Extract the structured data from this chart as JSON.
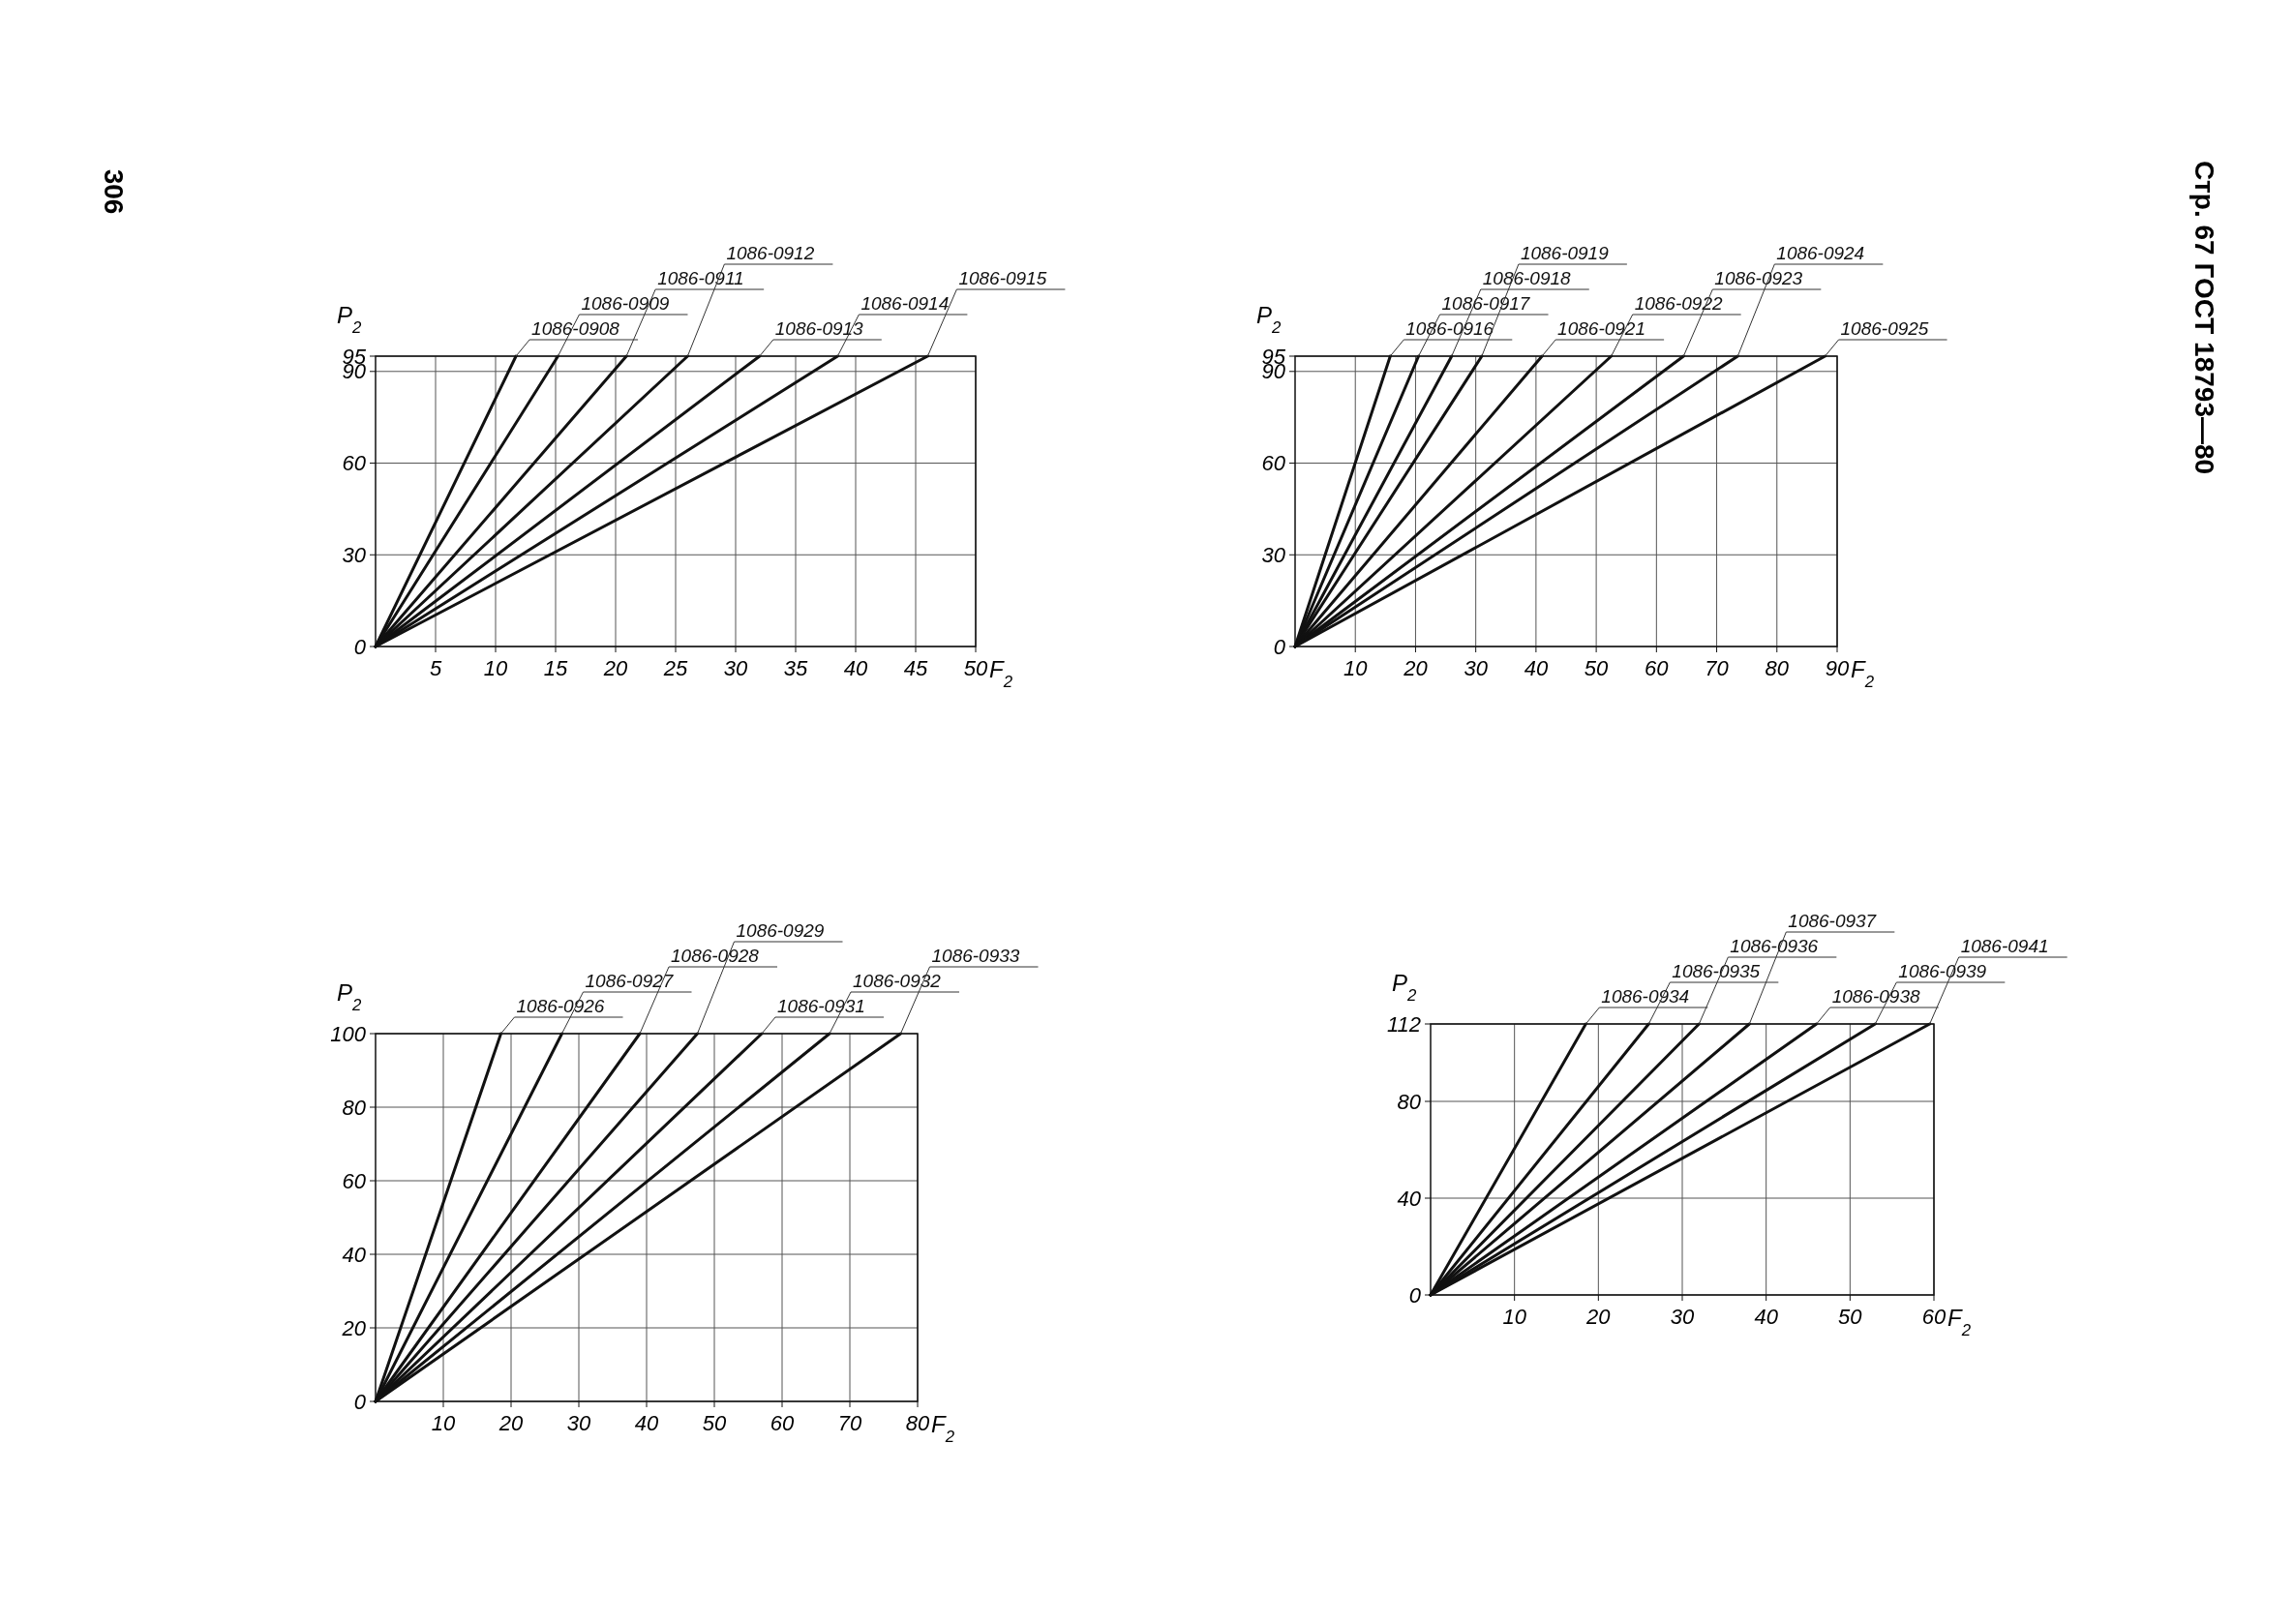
{
  "chart_data": [
    {
      "type": "line",
      "xlabel": "F$_{2}$",
      "ylabel": "P$_{2}$",
      "xlim": [
        0,
        50
      ],
      "ylim": [
        0,
        95
      ],
      "xticks": [
        5,
        10,
        15,
        20,
        25,
        30,
        35,
        40,
        45,
        50
      ],
      "yticks": [
        0,
        30,
        60,
        90,
        95
      ],
      "grid": true,
      "annotations": [
        "306"
      ],
      "series": [
        {
          "name": "1086-0908",
          "color": "#111111",
          "x": [
            0,
            11.7
          ],
          "values": [
            0,
            95
          ]
        },
        {
          "name": "1086-0909",
          "color": "#111111",
          "x": [
            0,
            15.2
          ],
          "values": [
            0,
            95
          ]
        },
        {
          "name": "1086-0911",
          "color": "#111111",
          "x": [
            0,
            20.9
          ],
          "values": [
            0,
            95
          ]
        },
        {
          "name": "1086-0912",
          "color": "#111111",
          "x": [
            0,
            26
          ],
          "values": [
            0,
            95
          ]
        },
        {
          "name": "1086-0913",
          "color": "#111111",
          "x": [
            0,
            32
          ],
          "values": [
            0,
            95
          ]
        },
        {
          "name": "1086-0914",
          "color": "#111111",
          "x": [
            0,
            38.5
          ],
          "values": [
            0,
            95
          ]
        },
        {
          "name": "1086-0915",
          "color": "#111111",
          "x": [
            0,
            46
          ],
          "values": [
            0,
            95
          ]
        }
      ]
    },
    {
      "type": "line",
      "xlabel": "F$_{2}$",
      "ylabel": "P$_{2}$",
      "xlim": [
        0,
        90
      ],
      "ylim": [
        0,
        95
      ],
      "xticks": [
        10,
        20,
        30,
        40,
        50,
        60,
        70,
        80,
        90
      ],
      "yticks": [
        0,
        30,
        60,
        90,
        95
      ],
      "grid": true,
      "annotations": [
        "Стр. 67 ГОСТ 18793—80"
      ],
      "series": [
        {
          "name": "1086-0916",
          "color": "#111111",
          "x": [
            0,
            15.8
          ],
          "values": [
            0,
            95
          ]
        },
        {
          "name": "1086-0917",
          "color": "#111111",
          "x": [
            0,
            20.5
          ],
          "values": [
            0,
            95
          ]
        },
        {
          "name": "1086-0918",
          "color": "#111111",
          "x": [
            0,
            26
          ],
          "values": [
            0,
            95
          ]
        },
        {
          "name": "1086-0919",
          "color": "#111111",
          "x": [
            0,
            31
          ],
          "values": [
            0,
            95
          ]
        },
        {
          "name": "1086-0921",
          "color": "#111111",
          "x": [
            0,
            41
          ],
          "values": [
            0,
            95
          ]
        },
        {
          "name": "1086-0922",
          "color": "#111111",
          "x": [
            0,
            52.5
          ],
          "values": [
            0,
            95
          ]
        },
        {
          "name": "1086-0923",
          "color": "#111111",
          "x": [
            0,
            64.5
          ],
          "values": [
            0,
            95
          ]
        },
        {
          "name": "1086-0924",
          "color": "#111111",
          "x": [
            0,
            73.5
          ],
          "values": [
            0,
            95
          ]
        },
        {
          "name": "1086-0925",
          "color": "#111111",
          "x": [
            0,
            88
          ],
          "values": [
            0,
            95
          ]
        }
      ]
    },
    {
      "type": "line",
      "xlabel": "F$_{2}$",
      "ylabel": "P$_{2}$",
      "xlim": [
        0,
        80
      ],
      "ylim": [
        0,
        100
      ],
      "xticks": [
        10,
        20,
        30,
        40,
        50,
        60,
        70,
        80
      ],
      "yticks": [
        0,
        20,
        40,
        60,
        80,
        100
      ],
      "grid": true,
      "series": [
        {
          "name": "1086-0926",
          "color": "#111111",
          "x": [
            0,
            18.5
          ],
          "values": [
            0,
            100
          ]
        },
        {
          "name": "1086-0927",
          "color": "#111111",
          "x": [
            0,
            27.5
          ],
          "values": [
            0,
            100
          ]
        },
        {
          "name": "1086-0928",
          "color": "#111111",
          "x": [
            0,
            39
          ],
          "values": [
            0,
            100
          ]
        },
        {
          "name": "1086-0929",
          "color": "#111111",
          "x": [
            0,
            47.5
          ],
          "values": [
            0,
            100
          ]
        },
        {
          "name": "1086-0931",
          "color": "#111111",
          "x": [
            0,
            57
          ],
          "values": [
            0,
            100
          ]
        },
        {
          "name": "1086-0932",
          "color": "#111111",
          "x": [
            0,
            67
          ],
          "values": [
            0,
            100
          ]
        },
        {
          "name": "1086-0933",
          "color": "#111111",
          "x": [
            0,
            77.5
          ],
          "values": [
            0,
            100
          ]
        }
      ]
    },
    {
      "type": "line",
      "xlabel": "F$_{2}$",
      "ylabel": "P$_{2}$",
      "xlim": [
        0,
        60
      ],
      "ylim": [
        0,
        112
      ],
      "xticks": [
        10,
        20,
        30,
        40,
        50,
        60
      ],
      "yticks": [
        0,
        40,
        80,
        112
      ],
      "grid": true,
      "series": [
        {
          "name": "1086-0934",
          "color": "#111111",
          "x": [
            0,
            18.5
          ],
          "values": [
            0,
            112
          ]
        },
        {
          "name": "1086-0935",
          "color": "#111111",
          "x": [
            0,
            26
          ],
          "values": [
            0,
            112
          ]
        },
        {
          "name": "1086-0936",
          "color": "#111111",
          "x": [
            0,
            32
          ],
          "values": [
            0,
            112
          ]
        },
        {
          "name": "1086-0937",
          "color": "#111111",
          "x": [
            0,
            38
          ],
          "values": [
            0,
            112
          ]
        },
        {
          "name": "1086-0938",
          "color": "#111111",
          "x": [
            0,
            46
          ],
          "values": [
            0,
            112
          ]
        },
        {
          "name": "1086-0939",
          "color": "#111111",
          "x": [
            0,
            53
          ],
          "values": [
            0,
            112
          ]
        },
        {
          "name": "1086-0941",
          "color": "#111111",
          "x": [
            0,
            59.5
          ],
          "values": [
            0,
            112
          ]
        }
      ]
    }
  ]
}
